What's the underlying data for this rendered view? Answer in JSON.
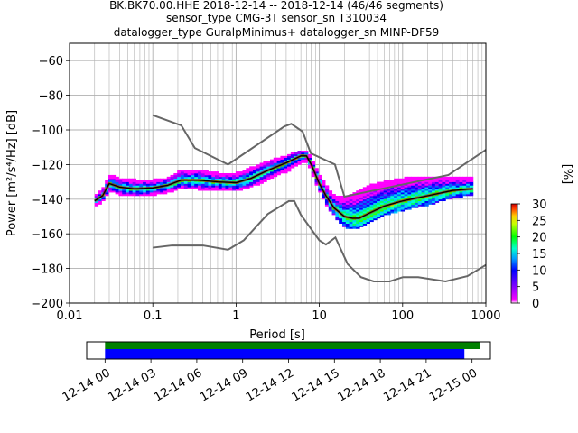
{
  "chart_data": {
    "type": "heatmap",
    "title_lines": [
      "BK.BK70.00.HHE   2018-12-14 -- 2018-12-14  (46/46 segments)",
      "sensor_type CMG-3T sensor_sn T310034",
      "datalogger_type GuralpMinimus+ datalogger_sn MINP-DF59"
    ],
    "xlabel": "Period [s]",
    "ylabel": "Power [m²/s⁴/Hz] [dB]",
    "xscale": "log",
    "xlim": [
      0.01,
      1000
    ],
    "ylim": [
      -200,
      -50
    ],
    "x_ticks": [
      0.01,
      0.1,
      1,
      10,
      100,
      1000
    ],
    "x_tick_labels": [
      "0.01",
      "0.1",
      "1",
      "10",
      "100",
      "1000"
    ],
    "y_ticks": [
      -200,
      -180,
      -160,
      -140,
      -120,
      -100,
      -80,
      -60
    ],
    "y_tick_labels": [
      "−200",
      "−180",
      "−160",
      "−140",
      "−120",
      "−100",
      "−80",
      "−60"
    ],
    "grid": true,
    "colorbar": {
      "label": "[%]",
      "min": 0,
      "max": 30,
      "ticks": [
        0,
        5,
        10,
        15,
        20,
        25,
        30
      ],
      "tick_labels": [
        "0",
        "5",
        "10",
        "15",
        "20",
        "25",
        "30"
      ]
    },
    "noise_model_upper": {
      "name": "NHNM",
      "x": [
        0.1,
        0.22,
        0.32,
        0.8,
        3.8,
        4.6,
        6.3,
        7.9,
        15.4,
        20,
        354.8,
        1000
      ],
      "y": [
        -91.5,
        -97.4,
        -110.5,
        -120,
        -98,
        -96.5,
        -101,
        -113.5,
        -120,
        -138.5,
        -126,
        -111.5
      ]
    },
    "noise_model_lower": {
      "name": "NLNM",
      "x": [
        0.1,
        0.17,
        0.4,
        0.8,
        1.24,
        2.4,
        4.3,
        5,
        6,
        10,
        12,
        15.6,
        21.9,
        31.6,
        45,
        70,
        101,
        154,
        328,
        600,
        1000
      ],
      "y": [
        -168,
        -166.7,
        -166.7,
        -169.2,
        -163.7,
        -148.6,
        -141.1,
        -141.1,
        -149,
        -163.8,
        -166.2,
        -162.1,
        -177.5,
        -185,
        -187.5,
        -187.5,
        -185,
        -185,
        -187.5,
        -184.4,
        -178
      ]
    },
    "psd_mean": {
      "x": [
        0.02,
        0.025,
        0.03,
        0.04,
        0.06,
        0.1,
        0.15,
        0.22,
        0.35,
        0.6,
        1,
        1.5,
        2.5,
        4,
        6,
        7,
        8,
        10,
        12,
        15,
        20,
        25,
        30,
        40,
        60,
        100,
        200,
        400,
        700
      ],
      "y": [
        -141,
        -138,
        -131,
        -133,
        -134,
        -133.5,
        -132,
        -129,
        -129,
        -130,
        -130.5,
        -128,
        -123,
        -119,
        -115,
        -115,
        -120,
        -131,
        -138,
        -145,
        -150,
        -151,
        -151,
        -148,
        -144,
        -141,
        -138,
        -135,
        -134
      ]
    },
    "psd_spread": {
      "x": [
        0.02,
        0.025,
        0.03,
        0.04,
        0.06,
        0.1,
        0.15,
        0.22,
        0.35,
        0.6,
        1,
        1.5,
        2.5,
        4,
        6,
        7,
        8,
        10,
        12,
        15,
        20,
        25,
        30,
        40,
        60,
        100,
        200,
        400,
        700
      ],
      "low": [
        -144,
        -141,
        -135,
        -137,
        -138,
        -137.5,
        -136,
        -133,
        -134,
        -135,
        -135,
        -133,
        -128,
        -124,
        -119,
        -118,
        -124,
        -135,
        -143,
        -149,
        -156,
        -157,
        -156,
        -153,
        -149,
        -146,
        -143,
        -139,
        -137
      ],
      "high": [
        -138,
        -134,
        -126,
        -128,
        -129,
        -129,
        -128,
        -123,
        -123,
        -125,
        -125,
        -122,
        -118,
        -115,
        -112,
        -112,
        -116,
        -126,
        -132,
        -138,
        -139,
        -137,
        -135,
        -132,
        -130,
        -128,
        -127,
        -127,
        -128
      ]
    }
  },
  "timeline": {
    "tick_labels": [
      "12-14 00",
      "12-14 03",
      "12-14 06",
      "12-14 09",
      "12-14 12",
      "12-14 15",
      "12-14 18",
      "12-14 21",
      "12-15 00"
    ],
    "tick_hours": [
      0,
      3,
      6,
      9,
      12,
      15,
      18,
      21,
      24
    ],
    "range_hours": [
      -1.2,
      25.2
    ],
    "data_bar": {
      "start_hour": 0,
      "end_hour": 24.5,
      "color": "#008000"
    },
    "processed_bar": {
      "start_hour": 0,
      "end_hour": 23.5,
      "color": "#0000ff"
    }
  },
  "colors": {
    "nm_line": "#666666",
    "mean_line": "#000000",
    "grid": "#b0b0b0"
  }
}
